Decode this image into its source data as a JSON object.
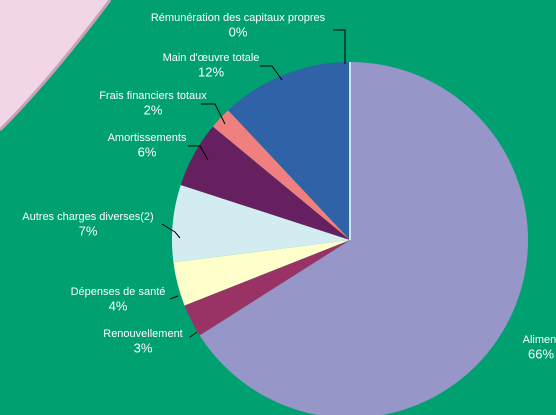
{
  "chart_data": {
    "type": "pie",
    "categories": [
      "Aliment",
      "Renouvellement",
      "Dépenses de santé",
      "Autres charges diverses(2)",
      "Amortissements",
      "Frais financiers totaux",
      "Main d'œuvre totale",
      "Rémunération des capitaux propres"
    ],
    "values": [
      66,
      3,
      4,
      7,
      6,
      2,
      12,
      0
    ],
    "value_labels": [
      "66%",
      "3%",
      "4%",
      "7%",
      "6%",
      "2%",
      "12%",
      "0%"
    ],
    "colors": [
      "#9696c8",
      "#993366",
      "#ffffcc",
      "#d2ecf2",
      "#66205f",
      "#f08080",
      "#3062a8",
      "#cfe6f5"
    ]
  }
}
